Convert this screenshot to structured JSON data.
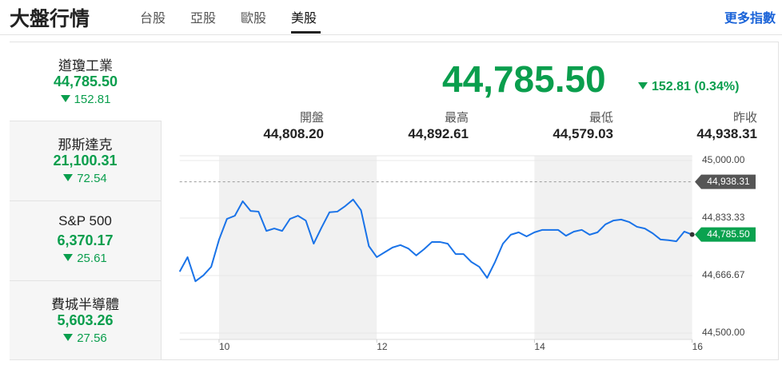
{
  "header": {
    "title": "大盤行情",
    "tabs": [
      "台股",
      "亞股",
      "歐股",
      "美股"
    ],
    "more": "更多指數"
  },
  "indices": [
    {
      "name": "道瓊工業",
      "value": "44,785.50",
      "change": "152.81"
    },
    {
      "name": "那斯達克",
      "value": "21,100.31",
      "change": "72.54"
    },
    {
      "name": "S&P 500",
      "value": "6,370.17",
      "change": "25.61"
    },
    {
      "name": "費城半導體",
      "value": "5,603.26",
      "change": "27.56"
    }
  ],
  "detail": {
    "value": "44,785.50",
    "change": "152.81 (0.34%)",
    "stats": [
      {
        "label": "開盤",
        "value": "44,808.20"
      },
      {
        "label": "最高",
        "value": "44,892.61"
      },
      {
        "label": "最低",
        "value": "44,579.03"
      },
      {
        "label": "昨收",
        "value": "44,938.31"
      }
    ]
  },
  "chart_data": {
    "type": "line",
    "color": "#1a73e8",
    "x": [
      9.5,
      9.6,
      9.7,
      9.8,
      9.9,
      10.0,
      10.1,
      10.2,
      10.3,
      10.4,
      10.5,
      10.6,
      10.7,
      10.8,
      10.9,
      11.0,
      11.1,
      11.2,
      11.3,
      11.4,
      11.5,
      11.6,
      11.7,
      11.8,
      11.9,
      12.0,
      12.1,
      12.2,
      12.3,
      12.4,
      12.5,
      12.6,
      12.7,
      12.8,
      12.9,
      13.0,
      13.1,
      13.2,
      13.3,
      13.4,
      13.5,
      13.6,
      13.7,
      13.8,
      13.9,
      14.0,
      14.1,
      14.2,
      14.3,
      14.4,
      14.5,
      14.6,
      14.7,
      14.8,
      14.9,
      15.0,
      15.1,
      15.2,
      15.3,
      15.4,
      15.5,
      15.6,
      15.7,
      15.8,
      15.9,
      16.0
    ],
    "values": [
      44678,
      44720,
      44650,
      44667,
      44692,
      44771,
      44831,
      44840,
      44882,
      44854,
      44852,
      44796,
      44803,
      44796,
      44831,
      44840,
      44826,
      44759,
      44806,
      44850,
      44852,
      44868,
      44887,
      44856,
      44752,
      44720,
      44734,
      44748,
      44755,
      44745,
      44725,
      44743,
      44764,
      44764,
      44759,
      44729,
      44729,
      44706,
      44692,
      44660,
      44706,
      44759,
      44785,
      44792,
      44780,
      44792,
      44799,
      44799,
      44799,
      44782,
      44794,
      44799,
      44785,
      44792,
      44815,
      44826,
      44829,
      44822,
      44808,
      44803,
      44789,
      44771,
      44769,
      44766,
      44794,
      44785.5
    ],
    "xlim": [
      9.5,
      16
    ],
    "xticks": [
      10,
      12,
      14,
      16
    ],
    "ylim": [
      44500,
      45000
    ],
    "yticks": [
      {
        "value": 45000,
        "label": "45,000.00"
      },
      {
        "value": 44833.33,
        "label": "44,833.33"
      },
      {
        "value": 44666.67,
        "label": "44,666.67"
      },
      {
        "value": 44500,
        "label": "44,500.00"
      }
    ],
    "grid": true,
    "reference": {
      "value": 44938.31,
      "label": "44,938.31"
    },
    "last": {
      "value": 44785.5,
      "label": "44,785.50"
    }
  }
}
